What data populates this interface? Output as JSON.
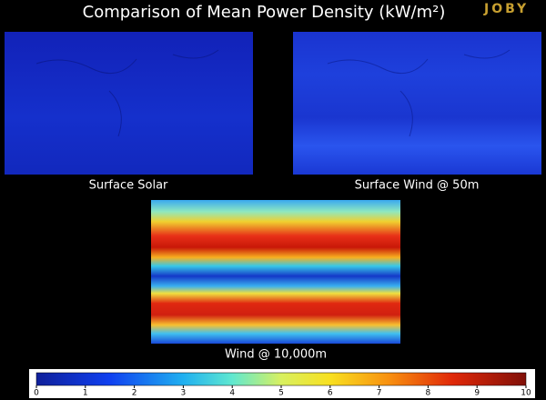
{
  "header": {
    "title": "Comparison of Mean Power Density (kW/m²)",
    "logo": "JOBY"
  },
  "panels": [
    {
      "label": "Surface Solar"
    },
    {
      "label": "Surface Wind @ 50m"
    },
    {
      "label": "Wind @ 10,000m"
    }
  ],
  "colorbar": {
    "ticks": [
      0,
      1,
      2,
      3,
      4,
      5,
      6,
      7,
      8,
      9,
      10
    ]
  }
}
